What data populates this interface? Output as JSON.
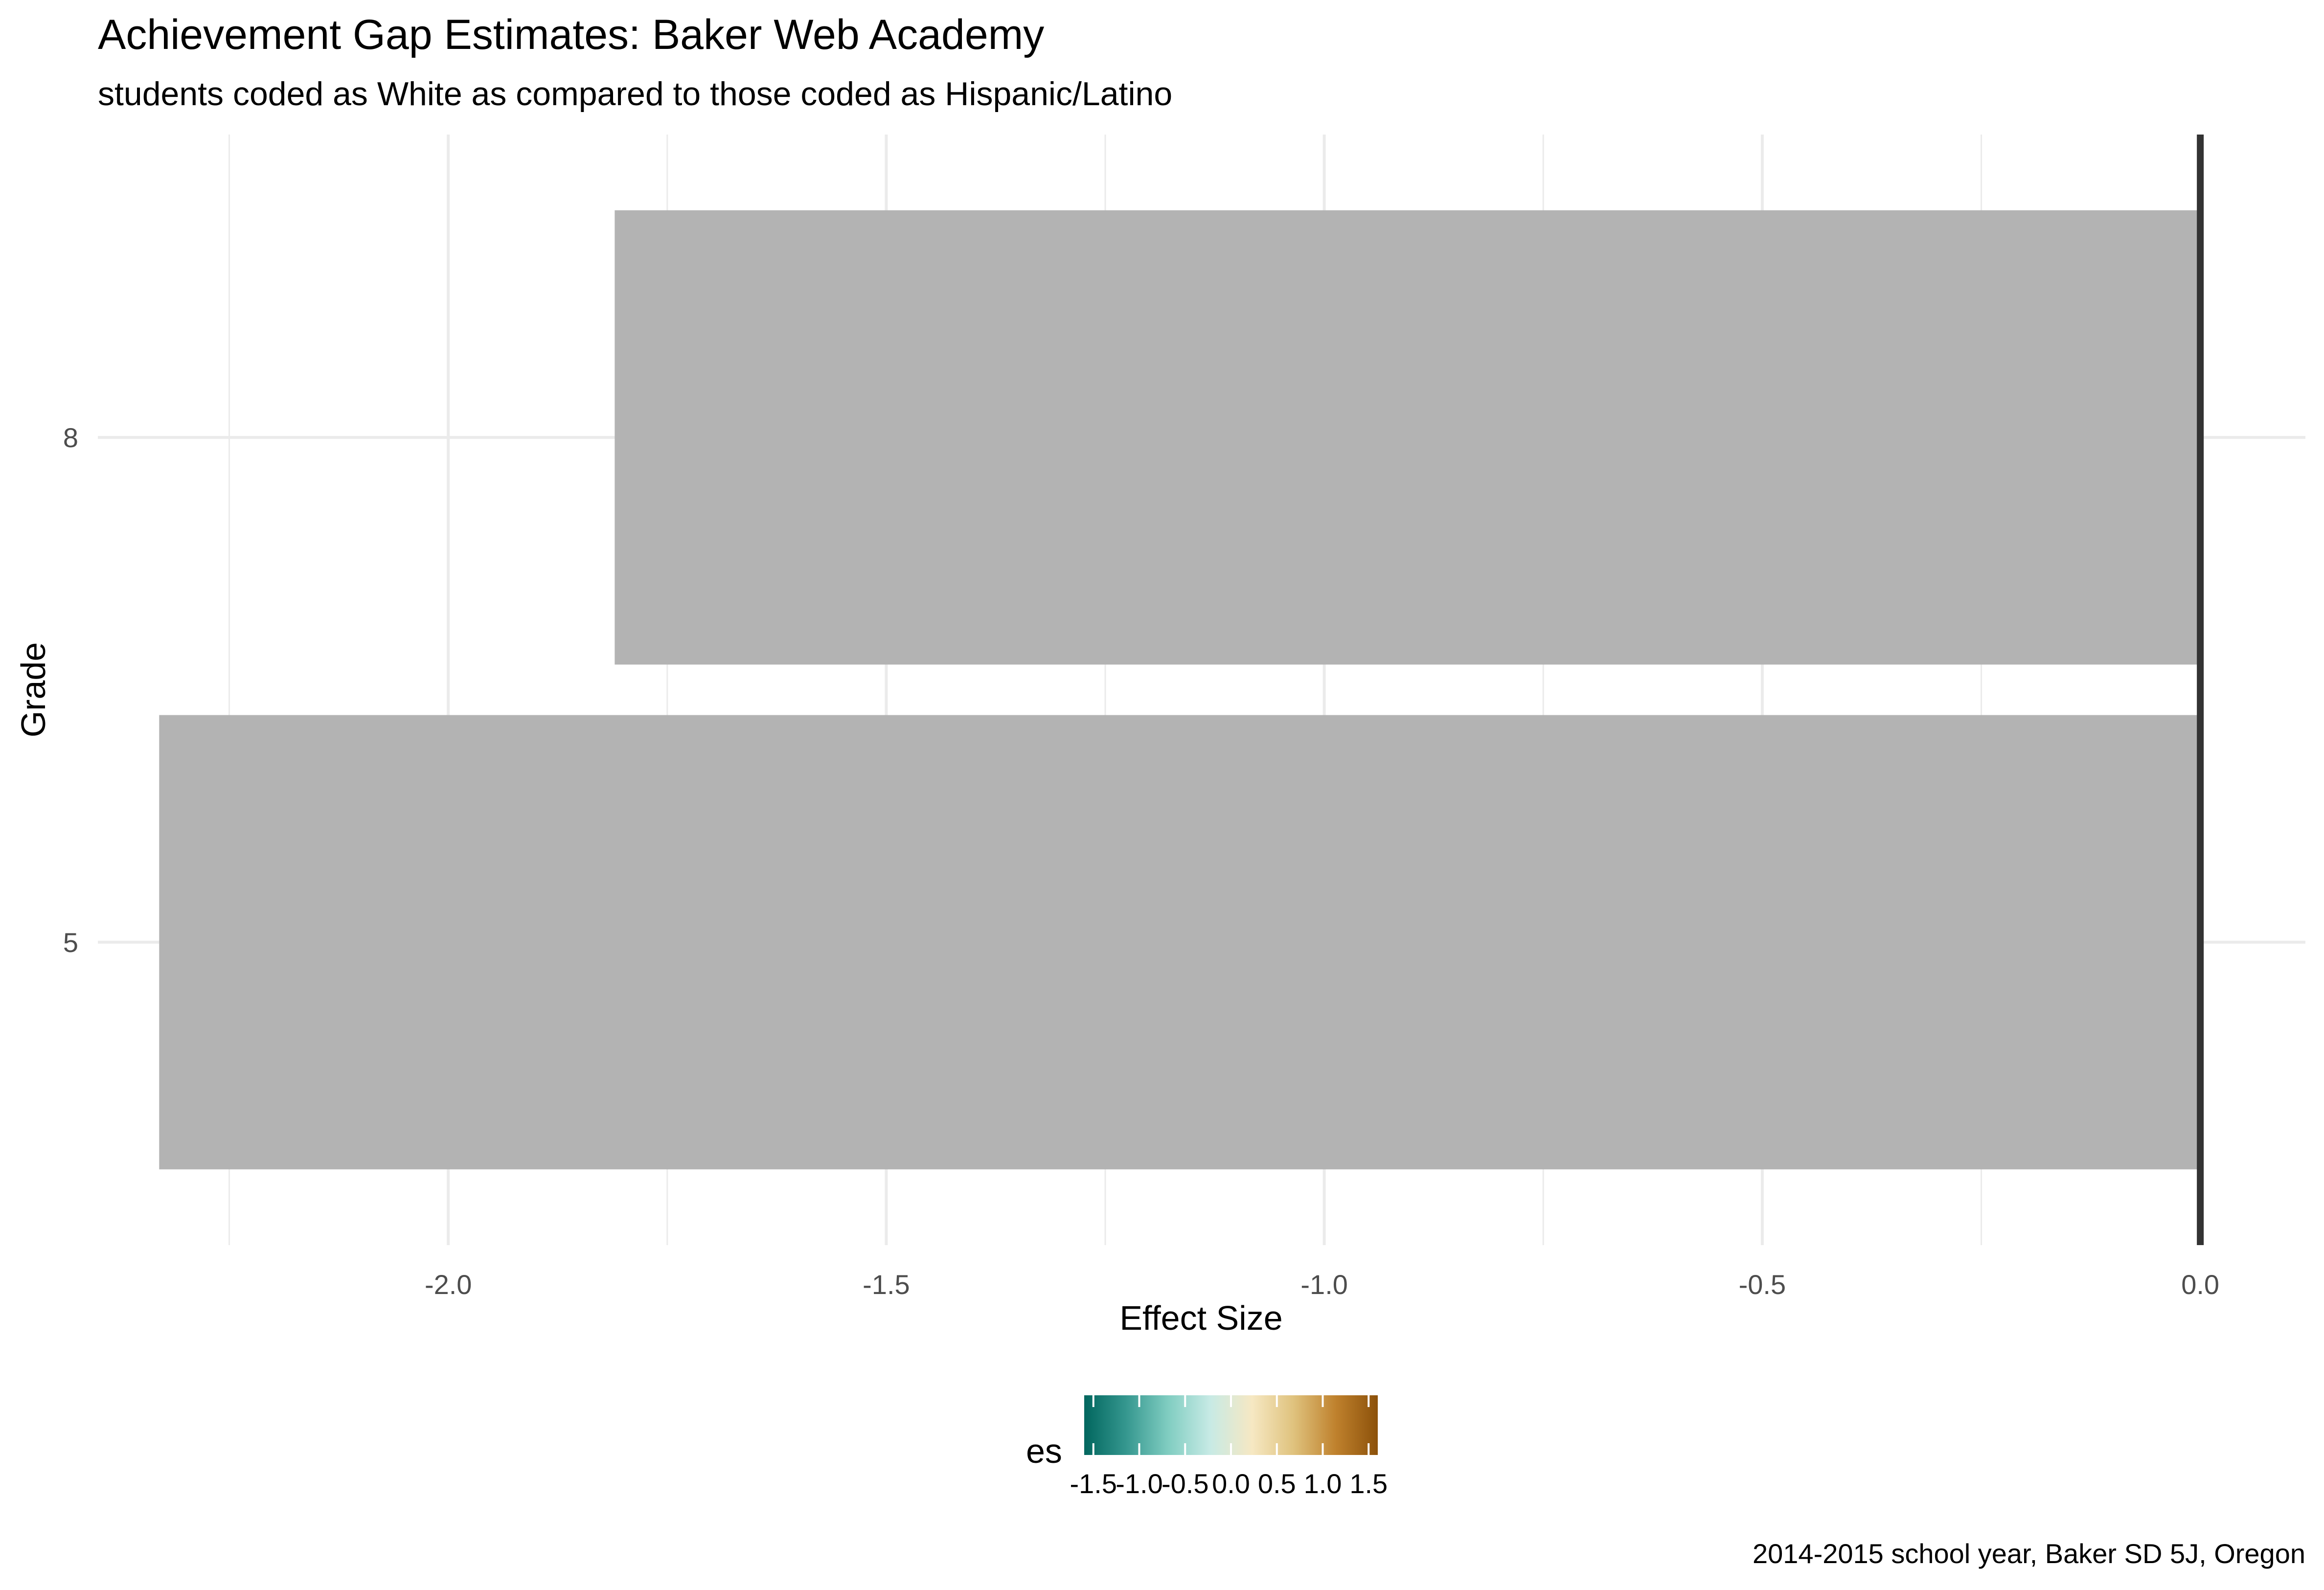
{
  "chart_data": {
    "type": "bar",
    "orientation": "horizontal",
    "title": "Achievement Gap Estimates: Baker Web Academy",
    "subtitle": "students coded as White as compared to those coded as Hispanic/Latino",
    "xlabel": "Effect Size",
    "ylabel": "Grade",
    "caption": "2014-2015 school year, Baker SD 5J, Oregon",
    "categories": [
      "5",
      "8"
    ],
    "values": [
      -2.33,
      -1.81
    ],
    "xlim": [
      -2.4,
      0.12
    ],
    "xticks": [
      -2.0,
      -1.5,
      -1.0,
      -0.5,
      0.0
    ],
    "xtick_labels": [
      "-2.0",
      "-1.5",
      "-1.0",
      "-0.5",
      "0.0"
    ],
    "reference_line": 0.0,
    "grid": true,
    "bar_color": "#b3b3b3",
    "reference_line_color": "#333333",
    "legend": {
      "title": "es",
      "position": "bottom",
      "range": [
        -1.6,
        1.6
      ],
      "ticks": [
        -1.5,
        -1.0,
        -0.5,
        0.0,
        0.5,
        1.0,
        1.5
      ],
      "tick_labels": [
        "-1.5",
        "-1.0",
        "-0.5",
        "0.0",
        "0.5",
        "1.0",
        "1.5"
      ],
      "colors": [
        "#01665e",
        "#35978f",
        "#80cdc1",
        "#c7eae5",
        "#f6e8c3",
        "#dfc27d",
        "#bf812d",
        "#8c510a"
      ]
    }
  }
}
